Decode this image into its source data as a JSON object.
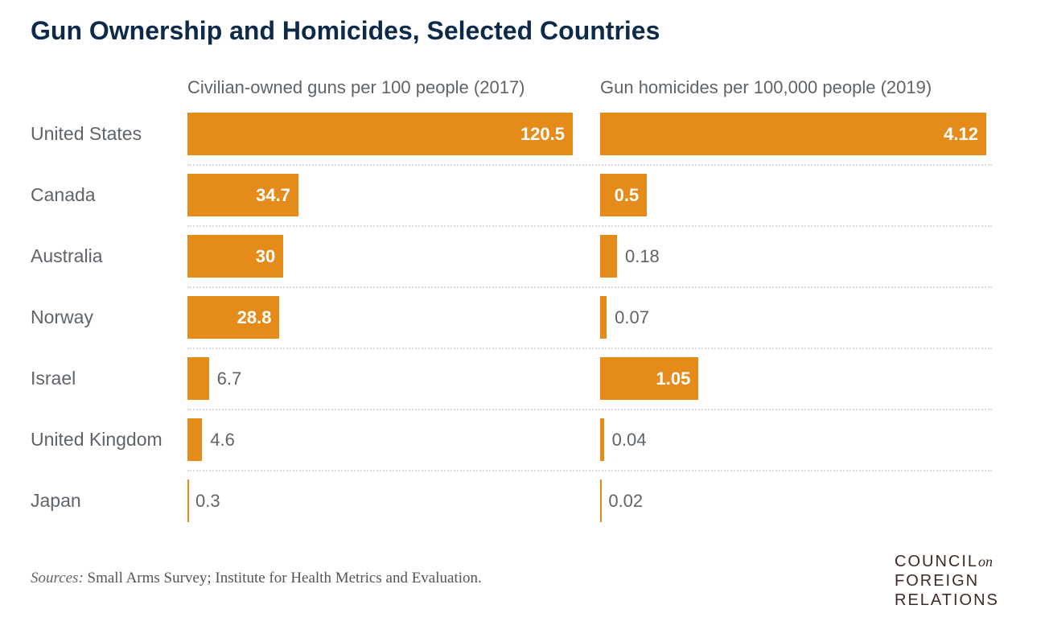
{
  "chart_data": {
    "type": "bar",
    "title": "Gun Ownership and Homicides, Selected Countries",
    "categories": [
      "United States",
      "Canada",
      "Australia",
      "Norway",
      "Israel",
      "United Kingdom",
      "Japan"
    ],
    "series": [
      {
        "name": "Civilian-owned guns per 100 people (2017)",
        "values": [
          120.5,
          34.7,
          30,
          28.8,
          6.7,
          4.6,
          0.3
        ],
        "labels": [
          "120.5",
          "34.7",
          "30",
          "28.8",
          "6.7",
          "4.6",
          "0.3"
        ],
        "xlim": [
          0,
          120.5
        ]
      },
      {
        "name": "Gun homicides per 100,000 people (2019)",
        "values": [
          4.12,
          0.5,
          0.18,
          0.07,
          1.05,
          0.04,
          0.02
        ],
        "labels": [
          "4.12",
          "0.5",
          "0.18",
          "0.07",
          "1.05",
          "0.04",
          "0.02"
        ],
        "xlim": [
          0,
          4.12
        ]
      }
    ],
    "orientation": "horizontal",
    "grid": false
  },
  "colors": {
    "bar": "#e58b1a",
    "title": "#0d2a4a"
  },
  "source_label": "Sources:",
  "source_text": " Small Arms Survey; Institute for Health Metrics and Evaluation.",
  "logo": {
    "line1": "COUNCIL",
    "on": "on",
    "line2": "FOREIGN",
    "line3": "RELATIONS"
  }
}
